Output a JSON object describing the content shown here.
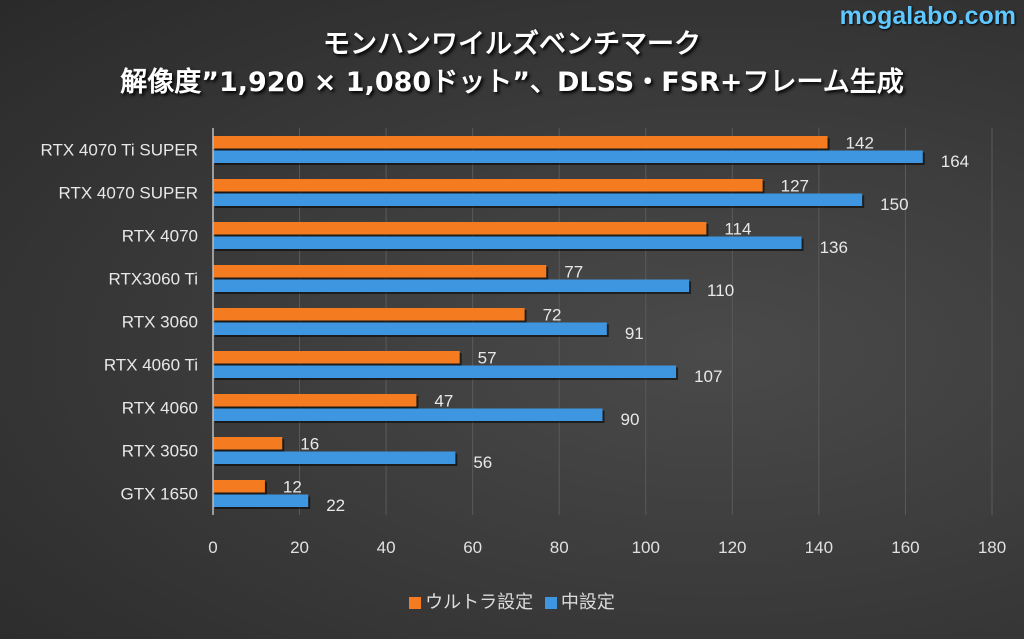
{
  "watermark": "mogalabo.com",
  "colors": {
    "ultra": "#f47b20",
    "medium": "#3f96e0",
    "grid": "#5a5a5a",
    "axis": "#bdbdbd"
  },
  "chart_data": {
    "type": "bar",
    "orientation": "horizontal",
    "title": "モンハンワイルズベンチマーク",
    "subtitle": "解像度”1,920 × 1,080ドット”、DLSS・FSR+フレーム生成",
    "categories": [
      "RTX 4070 Ti SUPER",
      "RTX 4070 SUPER",
      "RTX 4070",
      "RTX3060 Ti",
      "RTX 3060",
      "RTX 4060 Ti",
      "RTX 4060",
      "RTX 3050",
      "GTX 1650"
    ],
    "series": [
      {
        "name": "ウルトラ設定",
        "color": "#f47b20",
        "values": [
          142,
          127,
          114,
          77,
          72,
          57,
          47,
          16,
          12
        ]
      },
      {
        "name": "中設定",
        "color": "#3f96e0",
        "values": [
          164,
          150,
          136,
          110,
          91,
          107,
          90,
          56,
          22
        ]
      }
    ],
    "xlim": [
      0,
      180
    ],
    "xticks": [
      "0",
      "20",
      "40",
      "60",
      "80",
      "100",
      "120",
      "140",
      "160",
      "180"
    ],
    "grid": true,
    "legend_position": "bottom",
    "xlabel": "",
    "ylabel": ""
  }
}
